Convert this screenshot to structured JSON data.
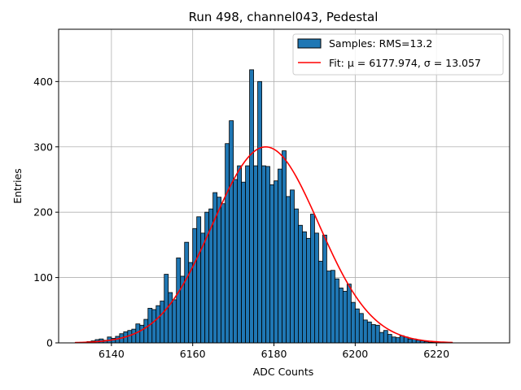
{
  "chart_data": {
    "type": "bar",
    "title": "Run 498, channel043, Pedestal",
    "xlabel": "ADC Counts",
    "ylabel": "Entries",
    "xlim": [
      6127,
      6238
    ],
    "ylim": [
      0,
      480
    ],
    "x_ticks": [
      6140,
      6160,
      6180,
      6200,
      6220
    ],
    "y_ticks": [
      0,
      100,
      200,
      300,
      400
    ],
    "grid": true,
    "legend_position": "top-right",
    "bins": {
      "start": 6131,
      "width": 1,
      "counts": [
        0,
        0,
        1,
        2,
        3,
        5,
        6,
        4,
        9,
        7,
        10,
        14,
        17,
        19,
        21,
        29,
        27,
        36,
        53,
        51,
        57,
        64,
        105,
        77,
        66,
        130,
        102,
        154,
        123,
        175,
        193,
        168,
        200,
        205,
        230,
        223,
        213,
        305,
        340,
        250,
        271,
        246,
        271,
        418,
        271,
        400,
        271,
        270,
        242,
        248,
        266,
        294,
        224,
        234,
        205,
        180,
        170,
        160,
        197,
        168,
        125,
        165,
        110,
        111,
        98,
        84,
        79,
        90,
        62,
        52,
        45,
        35,
        32,
        28,
        27,
        16,
        19,
        13,
        9,
        8,
        11,
        9,
        6,
        6,
        4,
        3,
        2,
        1,
        1,
        0,
        0,
        0,
        0
      ]
    },
    "fit": {
      "mu": 6177.974,
      "sigma": 13.057,
      "amplitude": 300,
      "x_range": [
        6131,
        6224
      ]
    },
    "series": [
      {
        "name": "Samples: RMS=13.2",
        "color": "#1f77b4",
        "kind": "histogram"
      },
      {
        "name": "Fit: μ = 6177.974, σ = 13.057",
        "color": "#ff0000",
        "kind": "line"
      }
    ]
  }
}
